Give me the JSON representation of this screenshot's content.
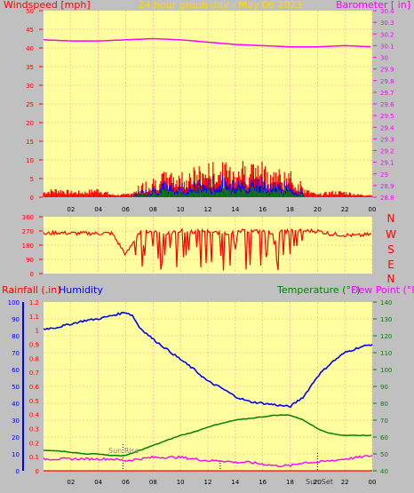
{
  "header": {
    "left_label": "Windspeed [mph]",
    "center_title": "24 hour graph day - May 06 2023",
    "right_label": "Barometer [ in]"
  },
  "colors": {
    "background": "#c0c0c0",
    "plot_bg": "#ffffa0",
    "grid": "#ff9999",
    "wind": "#ff0000",
    "gust": "#0000ff",
    "avg": "#008000",
    "barometer": "#ff00ff",
    "rain": "#ff0000",
    "humidity": "#0000ff",
    "temperature": "#008000",
    "dewpoint": "#ff00ff",
    "title": "#ffd700"
  },
  "panel3": {
    "rain_label": "Rainfall (.in)",
    "humidity_label": "Humidity",
    "temp_label": "Temperature (°F)",
    "dew_label": "Dew Point (°F)",
    "sunrise_label": "Sun Rise",
    "sunset_label": "Sun Set"
  },
  "compass": [
    "N",
    "W",
    "S",
    "E",
    "N"
  ],
  "chart_data": [
    {
      "type": "line",
      "panel": "wind-barometer",
      "x_ticks": [
        "02",
        "04",
        "06",
        "08",
        "10",
        "12",
        "14",
        "16",
        "18",
        "20",
        "22",
        "00"
      ],
      "y_left": {
        "label": "Windspeed [mph]",
        "ylim": [
          0,
          50
        ],
        "ticks": [
          0,
          5,
          10,
          15,
          20,
          25,
          30,
          35,
          40,
          45,
          50
        ]
      },
      "y_right": {
        "label": "Barometer [ in]",
        "ylim": [
          28.8,
          30.4
        ],
        "ticks": [
          "28.8",
          "28.9",
          "29",
          "29.1",
          "29.2",
          "29.3",
          "29.4",
          "29.5",
          "29.6",
          "29.7",
          "29.8",
          "29.9",
          "30",
          "30.1",
          "30.2",
          "30.3",
          "30.4"
        ]
      },
      "series": [
        {
          "name": "Windspeed",
          "x": [
            0,
            1,
            2,
            3,
            4,
            5,
            6,
            7,
            8,
            9,
            10,
            11,
            12,
            13,
            14,
            15,
            16,
            17,
            18,
            19,
            20,
            21,
            22,
            23,
            24
          ],
          "values": [
            2,
            3,
            2,
            2,
            3,
            1,
            1,
            3,
            5,
            6,
            6,
            7,
            8,
            8,
            9,
            9,
            8,
            7,
            6,
            3,
            1,
            2,
            2,
            1,
            1
          ]
        },
        {
          "name": "Barometer",
          "x": [
            0,
            2,
            4,
            6,
            8,
            10,
            12,
            14,
            16,
            18,
            20,
            22,
            24
          ],
          "values": [
            30.15,
            30.14,
            30.14,
            30.15,
            30.16,
            30.15,
            30.13,
            30.11,
            30.1,
            30.09,
            30.09,
            30.1,
            30.09
          ]
        }
      ]
    },
    {
      "type": "line",
      "panel": "wind-direction",
      "y_ticks": [
        "360",
        "270",
        "180",
        "90",
        "0"
      ],
      "ylim": [
        0,
        360
      ],
      "x": [
        0,
        1,
        2,
        3,
        4,
        5,
        6,
        7,
        8,
        9,
        10,
        11,
        12,
        13,
        14,
        15,
        16,
        17,
        18,
        19,
        20,
        21,
        22,
        23,
        24
      ],
      "values": [
        250,
        260,
        255,
        255,
        255,
        255,
        120,
        260,
        270,
        250,
        270,
        265,
        270,
        250,
        265,
        270,
        265,
        260,
        270,
        270,
        270,
        250,
        245,
        240,
        250
      ]
    },
    {
      "type": "line",
      "panel": "rain-humidity-temp",
      "x_ticks": [
        "02",
        "04",
        "06",
        "08",
        "10",
        "12",
        "14",
        "16",
        "18",
        "20",
        "22",
        "00"
      ],
      "y_left_humidity": {
        "ticks": [
          0,
          10,
          20,
          30,
          40,
          50,
          60,
          70,
          80,
          90,
          100
        ],
        "ylim": [
          0,
          100
        ]
      },
      "y_left_rain": {
        "ticks": [
          "0",
          "0.1",
          "0.2",
          "0.3",
          "0.4",
          "0.5",
          "0.6",
          "0.7",
          "0.8",
          "0.9",
          "1",
          "1.1",
          "1.2"
        ],
        "ylim": [
          0,
          1.2
        ]
      },
      "y_right": {
        "ticks": [
          40,
          50,
          60,
          70,
          80,
          90,
          100,
          110,
          120,
          130,
          140
        ],
        "ylim": [
          40,
          140
        ]
      },
      "series": [
        {
          "name": "Humidity",
          "x": [
            0,
            1,
            2,
            3,
            4,
            5,
            6,
            6.5,
            7,
            8,
            9,
            10,
            11,
            12,
            13,
            14,
            15,
            16,
            17,
            18,
            19,
            20,
            21,
            22,
            23,
            24
          ],
          "values": [
            84,
            85,
            87,
            89,
            90,
            92,
            94,
            92,
            85,
            78,
            72,
            66,
            60,
            53,
            49,
            44,
            41,
            40,
            39,
            38,
            44,
            56,
            64,
            70,
            73,
            75
          ]
        },
        {
          "name": "Temperature",
          "x": [
            0,
            1,
            2,
            3,
            4,
            5,
            6,
            7,
            8,
            9,
            10,
            11,
            12,
            13,
            14,
            15,
            16,
            17,
            18,
            19,
            20,
            21,
            22,
            23,
            24
          ],
          "values": [
            52,
            52,
            51,
            50,
            50,
            49,
            49,
            52,
            55,
            58,
            61,
            63,
            66,
            68,
            70,
            71,
            72,
            73,
            73,
            70,
            65,
            62,
            61,
            61,
            61
          ]
        },
        {
          "name": "Dew Point",
          "x": [
            0,
            1,
            2,
            3,
            4,
            5,
            6,
            7,
            8,
            9,
            10,
            11,
            12,
            13,
            14,
            15,
            16,
            17,
            18,
            19,
            20,
            21,
            22,
            23,
            24
          ],
          "values": [
            47,
            47,
            47,
            47,
            47,
            47,
            46,
            47,
            48,
            48,
            48,
            47,
            46,
            46,
            45,
            45,
            44,
            43,
            43,
            45,
            45,
            46,
            47,
            48,
            49
          ]
        },
        {
          "name": "Rainfall",
          "x": [
            0,
            24
          ],
          "values": [
            0,
            0
          ]
        }
      ],
      "markers": {
        "sunrise_hour": 5.8,
        "sunset_hour": 20.0,
        "noon_hour": 12.9
      }
    }
  ]
}
